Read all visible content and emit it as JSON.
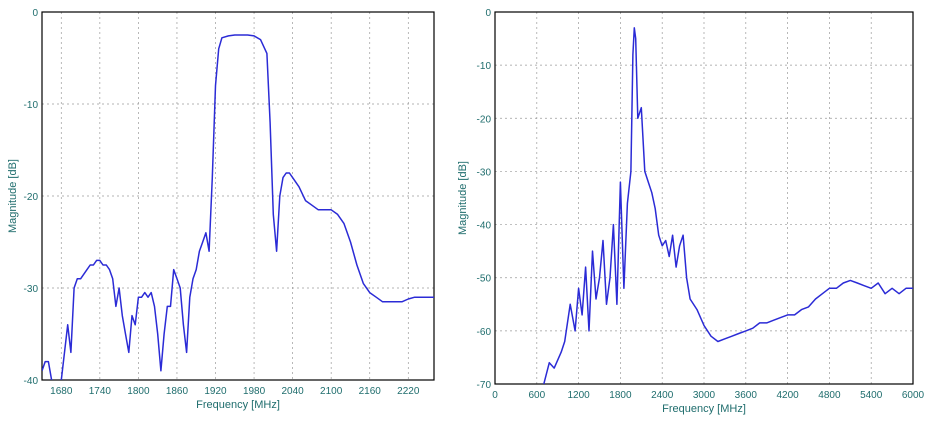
{
  "chart_data": [
    {
      "type": "line",
      "xlabel": "Frequency [MHz]",
      "ylabel": "Magnitude [dB]",
      "xlim": [
        1650,
        2260
      ],
      "ylim": [
        -40,
        0
      ],
      "xticks": [
        1680,
        1740,
        1800,
        1860,
        1920,
        1980,
        2040,
        2100,
        2160,
        2220
      ],
      "yticks": [
        0,
        -10,
        -20,
        -30,
        -40
      ],
      "grid": true,
      "series": [
        {
          "x": [
            1650,
            1655,
            1660,
            1665,
            1670,
            1675,
            1680,
            1685,
            1690,
            1695,
            1700,
            1705,
            1710,
            1715,
            1720,
            1725,
            1730,
            1735,
            1740,
            1745,
            1750,
            1755,
            1760,
            1765,
            1770,
            1775,
            1780,
            1785,
            1790,
            1795,
            1800,
            1805,
            1810,
            1815,
            1820,
            1825,
            1830,
            1835,
            1840,
            1845,
            1850,
            1855,
            1860,
            1865,
            1870,
            1875,
            1880,
            1885,
            1890,
            1895,
            1900,
            1905,
            1910,
            1915,
            1920,
            1925,
            1930,
            1940,
            1950,
            1960,
            1970,
            1980,
            1990,
            2000,
            2005,
            2010,
            2015,
            2020,
            2025,
            2030,
            2035,
            2040,
            2050,
            2060,
            2070,
            2080,
            2090,
            2100,
            2110,
            2120,
            2130,
            2140,
            2150,
            2160,
            2170,
            2180,
            2190,
            2200,
            2210,
            2220,
            2230,
            2240,
            2250,
            2260
          ],
          "y": [
            -39,
            -38,
            -38,
            -40,
            -41,
            -42,
            -40,
            -37,
            -34,
            -37,
            -30,
            -29,
            -29,
            -28.5,
            -28,
            -27.5,
            -27.5,
            -27,
            -27,
            -27.5,
            -27.5,
            -28,
            -29,
            -32,
            -30,
            -33,
            -35,
            -37,
            -33,
            -34,
            -31,
            -31,
            -30.5,
            -31,
            -30.5,
            -32,
            -35,
            -39,
            -35,
            -32,
            -32,
            -28,
            -29,
            -30,
            -34,
            -37,
            -31,
            -29,
            -28,
            -26,
            -25,
            -24,
            -26,
            -18,
            -8,
            -4,
            -2.8,
            -2.6,
            -2.5,
            -2.5,
            -2.5,
            -2.6,
            -3.0,
            -4.5,
            -12,
            -22,
            -26,
            -20,
            -18,
            -17.5,
            -17.5,
            -18,
            -19,
            -20.5,
            -21,
            -21.5,
            -21.5,
            -21.5,
            -22,
            -23,
            -25,
            -27.5,
            -29.5,
            -30.5,
            -31,
            -31.5,
            -31.5,
            -31.5,
            -31.5,
            -31.2,
            -31,
            -31,
            -31,
            -31
          ]
        }
      ]
    },
    {
      "type": "line",
      "xlabel": "Frequency [MHz]",
      "ylabel": "Magnitude [dB]",
      "xlim": [
        0,
        6000
      ],
      "ylim": [
        -70,
        0
      ],
      "xticks": [
        0,
        600,
        1200,
        1800,
        2400,
        3000,
        3600,
        4200,
        4800,
        5400,
        6000
      ],
      "yticks": [
        0,
        -10,
        -20,
        -30,
        -40,
        -50,
        -60,
        -70
      ],
      "grid": true,
      "series": [
        {
          "x": [
            700,
            780,
            850,
            950,
            1000,
            1080,
            1150,
            1200,
            1250,
            1300,
            1350,
            1400,
            1450,
            1500,
            1550,
            1600,
            1650,
            1700,
            1750,
            1800,
            1850,
            1900,
            1950,
            1980,
            2000,
            2020,
            2050,
            2100,
            2150,
            2200,
            2250,
            2300,
            2350,
            2400,
            2450,
            2500,
            2550,
            2600,
            2650,
            2700,
            2750,
            2800,
            2900,
            3000,
            3100,
            3200,
            3300,
            3400,
            3500,
            3600,
            3700,
            3800,
            3900,
            4000,
            4100,
            4200,
            4300,
            4400,
            4500,
            4600,
            4700,
            4800,
            4900,
            5000,
            5100,
            5200,
            5300,
            5400,
            5500,
            5600,
            5700,
            5800,
            5900,
            6000
          ],
          "y": [
            -70,
            -66,
            -67,
            -64,
            -62,
            -55,
            -60,
            -52,
            -57,
            -48,
            -60,
            -45,
            -54,
            -50,
            -43,
            -55,
            -50,
            -40,
            -55,
            -32,
            -52,
            -36,
            -30,
            -8,
            -3,
            -5,
            -20,
            -18,
            -30,
            -32,
            -34,
            -37,
            -42,
            -44,
            -43,
            -46,
            -42,
            -48,
            -44,
            -42,
            -50,
            -54,
            -56,
            -59,
            -61,
            -62,
            -61.5,
            -61,
            -60.5,
            -60,
            -59.5,
            -58.5,
            -58.5,
            -58,
            -57.5,
            -57,
            -57,
            -56,
            -55.5,
            -54,
            -53,
            -52,
            -52,
            -51,
            -50.5,
            -51,
            -51.5,
            -52,
            -51,
            -53,
            -52,
            -53,
            -52,
            -52
          ]
        }
      ]
    }
  ]
}
